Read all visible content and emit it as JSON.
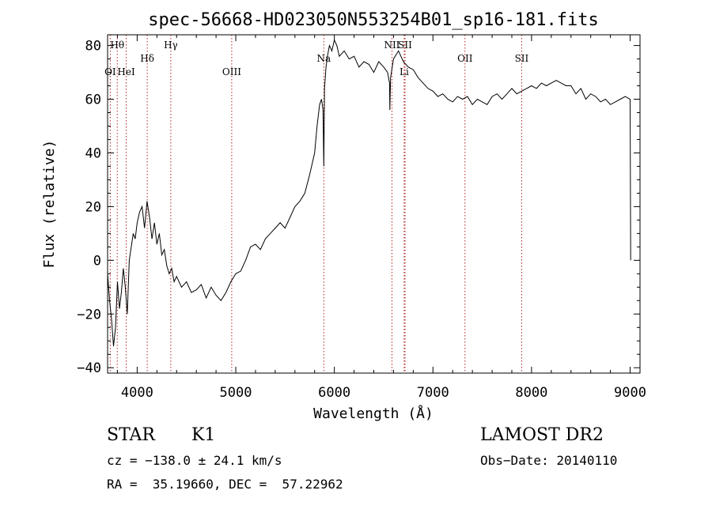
{
  "chart_data": {
    "type": "line",
    "title": "spec-56668-HD023050N553254B01_sp16-181.fits",
    "xlabel": "Wavelength (Å)",
    "ylabel": "Flux (relative)",
    "xlim": [
      3700,
      9100
    ],
    "ylim": [
      -42,
      84
    ],
    "x_ticks": [
      4000,
      5000,
      6000,
      7000,
      8000,
      9000
    ],
    "y_ticks": [
      -40,
      -20,
      0,
      20,
      40,
      60,
      80
    ],
    "x_tick_labels": [
      "4000",
      "5000",
      "6000",
      "7000",
      "8000",
      "9000"
    ],
    "y_tick_labels": [
      "−40",
      "−20",
      "0",
      "20",
      "40",
      "60",
      "80"
    ],
    "grid": false,
    "legend": "none",
    "colors": {
      "spectrum": "#000000",
      "lines": "#b22222"
    },
    "lines": [
      {
        "label": "Hθ",
        "x": 3798,
        "row": 1
      },
      {
        "label": "OI",
        "x": 3727,
        "row": 3
      },
      {
        "label": "HeI",
        "x": 3889,
        "row": 3
      },
      {
        "label": "Hδ",
        "x": 4102,
        "row": 2
      },
      {
        "label": "Hγ",
        "x": 4341,
        "row": 1
      },
      {
        "label": "OIII",
        "x": 4959,
        "row": 3
      },
      {
        "label": "Na",
        "x": 5893,
        "row": 2
      },
      {
        "label": "NII",
        "x": 6584,
        "row": 1
      },
      {
        "label": "SII",
        "x": 6717,
        "row": 1
      },
      {
        "label": "Li",
        "x": 6708,
        "row": 3
      },
      {
        "label": "OII",
        "x": 7325,
        "row": 2
      },
      {
        "label": "SII",
        "x": 7900,
        "row": 2
      }
    ],
    "series": [
      {
        "x": [
          3700,
          3720,
          3740,
          3760,
          3780,
          3800,
          3820,
          3840,
          3860,
          3880,
          3900,
          3920,
          3940,
          3960,
          3980,
          4000,
          4025,
          4050,
          4075,
          4100,
          4125,
          4150,
          4175,
          4200,
          4225,
          4250,
          4275,
          4300,
          4325,
          4350,
          4375,
          4400,
          4450,
          4500,
          4550,
          4600,
          4650,
          4700,
          4750,
          4800,
          4850,
          4900,
          4950,
          5000,
          5050,
          5100,
          5150,
          5200,
          5250,
          5300,
          5350,
          5400,
          5450,
          5500,
          5550,
          5600,
          5650,
          5700,
          5750,
          5800,
          5825,
          5850,
          5870,
          5885,
          5893,
          5900,
          5915,
          5930,
          5950,
          5975,
          6000,
          6025,
          6050,
          6100,
          6150,
          6200,
          6250,
          6300,
          6350,
          6400,
          6450,
          6500,
          6540,
          6560,
          6563,
          6570,
          6600,
          6650,
          6700,
          6750,
          6800,
          6850,
          6900,
          6950,
          7000,
          7050,
          7100,
          7150,
          7200,
          7250,
          7300,
          7350,
          7400,
          7450,
          7500,
          7550,
          7600,
          7650,
          7700,
          7750,
          7800,
          7850,
          7900,
          7950,
          8000,
          8050,
          8100,
          8150,
          8200,
          8250,
          8300,
          8350,
          8400,
          8450,
          8500,
          8550,
          8600,
          8650,
          8700,
          8750,
          8800,
          8850,
          8900,
          8950,
          9000,
          9005
        ],
        "y": [
          -5,
          -15,
          -22,
          -32,
          -25,
          -8,
          -18,
          -12,
          -3,
          -10,
          -20,
          0,
          5,
          10,
          8,
          14,
          18,
          20,
          12,
          22,
          16,
          8,
          14,
          6,
          10,
          2,
          4,
          -2,
          -5,
          -3,
          -8,
          -6,
          -10,
          -8,
          -12,
          -11,
          -9,
          -14,
          -10,
          -13,
          -15,
          -12,
          -8,
          -5,
          -4,
          0,
          5,
          6,
          4,
          8,
          10,
          12,
          14,
          12,
          16,
          20,
          22,
          25,
          32,
          40,
          50,
          58,
          60,
          56,
          35,
          64,
          72,
          76,
          80,
          78,
          82,
          80,
          76,
          78,
          75,
          76,
          72,
          74,
          73,
          70,
          74,
          72,
          70,
          66,
          56,
          68,
          75,
          78,
          74,
          72,
          71,
          68,
          66,
          64,
          63,
          61,
          62,
          60,
          59,
          61,
          60,
          61,
          58,
          60,
          59,
          58,
          61,
          62,
          60,
          62,
          64,
          62,
          63,
          64,
          65,
          64,
          66,
          65,
          66,
          67,
          66,
          65,
          65,
          62,
          64,
          60,
          62,
          61,
          59,
          60,
          58,
          59,
          60,
          61,
          60,
          0
        ]
      }
    ]
  },
  "info": {
    "class_label": "STAR",
    "subclass": "K1",
    "survey": "LAMOST DR2",
    "cz": "cz = −138.0 ± 24.1 km/s",
    "obs_date": "Obs−Date: 20140110",
    "coords": "RA =  35.19660, DEC =  57.22962"
  }
}
